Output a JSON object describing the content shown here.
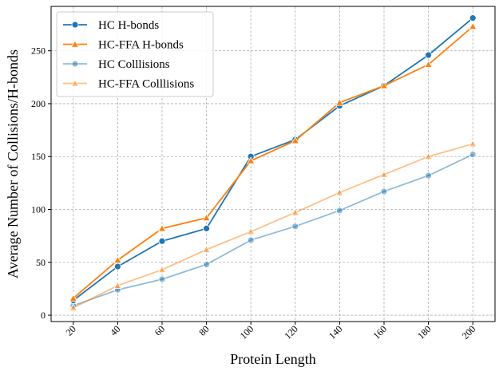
{
  "chart_data": {
    "type": "line",
    "title": "",
    "xlabel": "Protein Length",
    "ylabel": "Average Number of Collisions/H-bonds",
    "x": [
      20,
      40,
      60,
      80,
      100,
      120,
      140,
      160,
      180,
      200
    ],
    "xlim": [
      10,
      210
    ],
    "ylim": [
      -6,
      292
    ],
    "yticks": [
      0,
      50,
      100,
      150,
      200,
      250
    ],
    "grid": true,
    "legend_position": "top-left",
    "series": [
      {
        "name": "HC H-bonds",
        "color": "#1f77b4",
        "opacity": 1.0,
        "marker": "circle",
        "values": [
          14,
          46,
          70,
          82,
          150,
          166,
          198,
          217,
          246,
          281
        ]
      },
      {
        "name": "HC-FFA H-bonds",
        "color": "#ff7f0e",
        "opacity": 1.0,
        "marker": "triangle",
        "values": [
          16,
          52,
          82,
          92,
          146,
          165,
          201,
          217,
          237,
          273
        ]
      },
      {
        "name": "HC Colllisions",
        "color": "#1f77b4",
        "opacity": 0.5,
        "marker": "circle",
        "values": [
          9,
          24,
          34,
          48,
          71,
          84,
          99,
          117,
          132,
          152
        ]
      },
      {
        "name": "HC-FFA Colllisions",
        "color": "#ff7f0e",
        "opacity": 0.5,
        "marker": "triangle",
        "values": [
          7,
          28,
          43,
          62,
          79,
          97,
          116,
          133,
          150,
          162
        ]
      }
    ]
  }
}
